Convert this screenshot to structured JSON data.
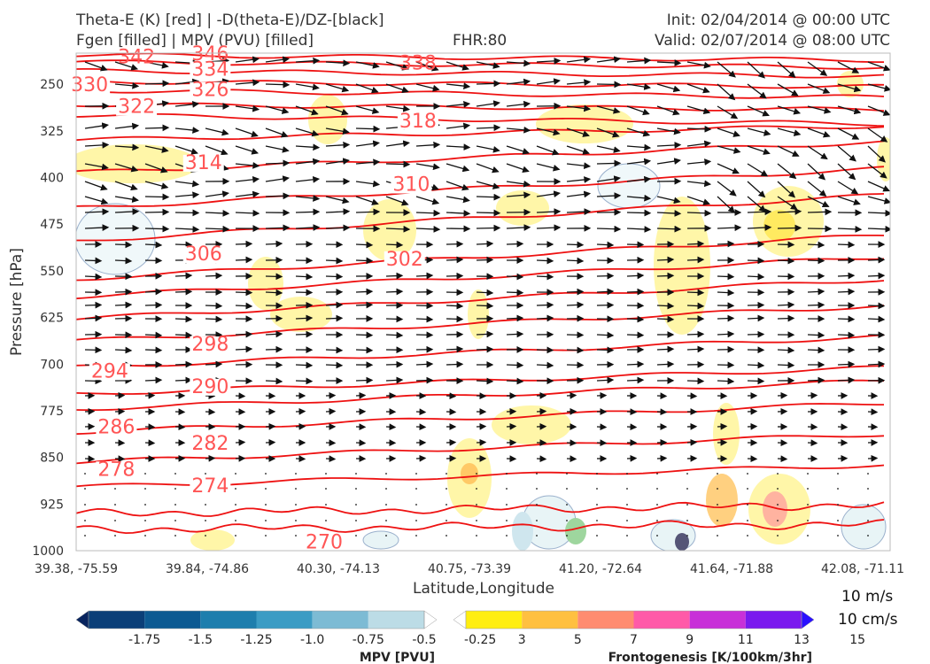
{
  "header": {
    "title_line1": "Theta-E (K) [red] | -D(theta-E)/DZ-[black]",
    "title_line2": "Fgen [filled] | MPV (PVU) [filled]",
    "fhr": "FHR:80",
    "init": "Init: 02/04/2014 @ 00:00 UTC",
    "valid": "Valid: 02/07/2014 @ 08:00 UTC"
  },
  "vector_scale": {
    "horizontal": "10 m/s",
    "vertical": "10 cm/s"
  },
  "chart_data": {
    "type": "cross-section",
    "xlabel": "Latitude,Longitude",
    "ylabel": "Pressure [hPa]",
    "x_ticks": [
      "39.38, -75.59",
      "39.84, -74.86",
      "40.30, -74.13",
      "40.75, -73.39",
      "41.20, -72.64",
      "41.64, -71.88",
      "42.08, -71.11"
    ],
    "y_ticks": [
      250,
      325,
      400,
      475,
      550,
      625,
      700,
      775,
      850,
      925,
      1000
    ],
    "ylim": [
      1000,
      200
    ],
    "y_reversed": true,
    "theta_e_labels": [
      {
        "value": "342",
        "x_index": 0.9,
        "p": 205
      },
      {
        "value": "346",
        "x_index": 2.0,
        "p": 200
      },
      {
        "value": "334",
        "x_index": 2.0,
        "p": 225
      },
      {
        "value": "338",
        "x_index": 5.1,
        "p": 215
      },
      {
        "value": "330",
        "x_index": 0.2,
        "p": 250
      },
      {
        "value": "326",
        "x_index": 2.0,
        "p": 258
      },
      {
        "value": "322",
        "x_index": 0.9,
        "p": 285
      },
      {
        "value": "318",
        "x_index": 5.1,
        "p": 308
      },
      {
        "value": "314",
        "x_index": 1.9,
        "p": 375
      },
      {
        "value": "310",
        "x_index": 5.0,
        "p": 410
      },
      {
        "value": "306",
        "x_index": 1.9,
        "p": 522
      },
      {
        "value": "302",
        "x_index": 4.9,
        "p": 530
      },
      {
        "value": "298",
        "x_index": 2.0,
        "p": 667
      },
      {
        "value": "294",
        "x_index": 0.5,
        "p": 710
      },
      {
        "value": "290",
        "x_index": 2.0,
        "p": 735
      },
      {
        "value": "286",
        "x_index": 0.6,
        "p": 800
      },
      {
        "value": "282",
        "x_index": 2.0,
        "p": 826
      },
      {
        "value": "278",
        "x_index": 0.6,
        "p": 868
      },
      {
        "value": "274",
        "x_index": 2.0,
        "p": 895
      },
      {
        "value": "270",
        "x_index": 3.7,
        "p": 985
      }
    ],
    "mpv_colorbar": {
      "label": "MPV [PVU]",
      "ticks": [
        "-1.75",
        "-1.5",
        "-1.25",
        "-1.0",
        "-0.75",
        "-0.5",
        "-0.25"
      ],
      "colors": [
        "#08245e",
        "#0b3f78",
        "#0d5a92",
        "#1e7ead",
        "#3c9cc4",
        "#7dbbd4",
        "#bcdce6",
        "#ffffff"
      ]
    },
    "fgen_colorbar": {
      "label": "Frontogenesis [K/100km/3hr]",
      "ticks": [
        "3",
        "5",
        "7",
        "9",
        "11",
        "13",
        "15"
      ],
      "colors": [
        "#ffffff",
        "#ffee11",
        "#ffc040",
        "#ff8c70",
        "#ff5aa8",
        "#c830d8",
        "#7a1aee",
        "#2a10ff"
      ]
    }
  }
}
